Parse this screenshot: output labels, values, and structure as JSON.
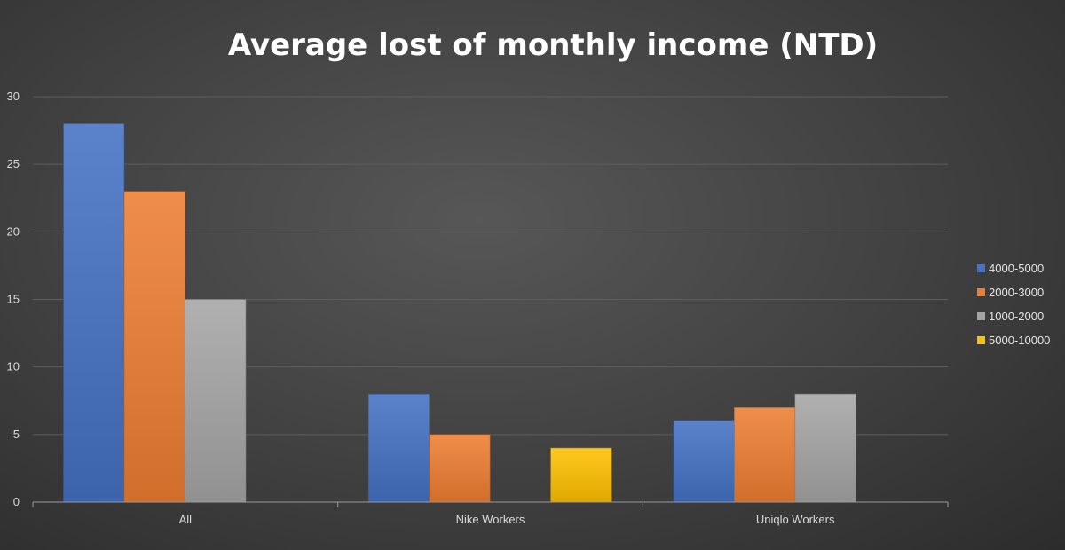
{
  "chart_data": {
    "type": "bar",
    "title": "Average lost of monthly income (NTD)",
    "xlabel": "",
    "ylabel": "",
    "categories": [
      "All",
      "Nike Workers",
      "Uniqlo Workers"
    ],
    "ylim": [
      0,
      30
    ],
    "yticks": [
      0,
      5,
      10,
      15,
      20,
      25,
      30
    ],
    "grid": true,
    "legend_position": "right",
    "series": [
      {
        "name": "4000-5000",
        "color": "#4472c4",
        "values": [
          28,
          8,
          6
        ]
      },
      {
        "name": "2000-3000",
        "color": "#ed7d31",
        "values": [
          23,
          5,
          7
        ]
      },
      {
        "name": "1000-2000",
        "color": "#a5a5a5",
        "values": [
          15,
          null,
          8
        ]
      },
      {
        "name": "5000-10000",
        "color": "#ffc000",
        "values": [
          null,
          4,
          null
        ]
      }
    ]
  }
}
